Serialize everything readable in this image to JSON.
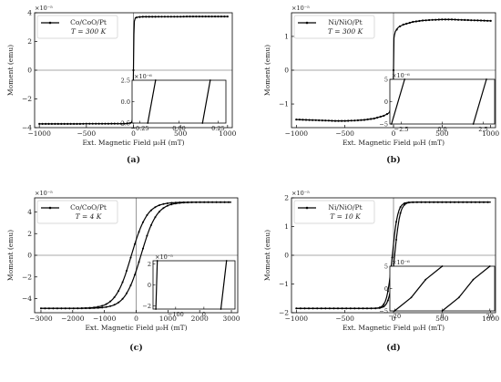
{
  "chart_data": [
    {
      "type": "line",
      "panel_label": "(a)",
      "ylabel": "Moment (emu)",
      "xlabel": "Ext. Magnetic Field μ₀H (mT)",
      "exponent": "×10⁻⁵",
      "xlim": [
        -1050,
        1050
      ],
      "ylim": [
        -4,
        4
      ],
      "xticks": [
        -1000,
        -500,
        0,
        500,
        1000
      ],
      "yticks": [
        -4,
        -2,
        0,
        2,
        4
      ],
      "legend": {
        "line1": "Co/CoO/Pt",
        "line2": "T = 300 K"
      },
      "grid": false,
      "series": [
        {
          "name": "Co/CoO/Pt T = 300 K",
          "x": [
            -1000,
            -900,
            -800,
            -700,
            -600,
            -500,
            -400,
            -300,
            -200,
            -100,
            -50,
            -20,
            -10,
            -5,
            0,
            5,
            10,
            20,
            50,
            100,
            200,
            300,
            400,
            500,
            600,
            700,
            800,
            900,
            1000
          ],
          "y": [
            -3.74,
            -3.74,
            -3.74,
            -3.74,
            -3.74,
            -3.73,
            -3.73,
            -3.73,
            -3.72,
            -3.72,
            -3.7,
            -3.65,
            -3.4,
            -2.5,
            0,
            2.5,
            3.4,
            3.65,
            3.7,
            3.72,
            3.72,
            3.73,
            3.73,
            3.73,
            3.74,
            3.74,
            3.74,
            3.74,
            3.74
          ]
        }
      ],
      "inset": {
        "exponent": "×10⁻⁶",
        "xlim": [
          -0.3,
          0.3
        ],
        "ylim": [
          -2.5,
          2.5
        ],
        "xticks": [
          -0.25,
          0.0,
          0.25
        ],
        "xticklabels": [
          "−0.25",
          "0.00",
          "0.25"
        ],
        "yticks": [
          -2.5,
          0.0,
          2.5
        ],
        "yticklabels": [
          "−2.5",
          "0.0",
          "2.5"
        ],
        "branches": [
          {
            "x": [
              -0.2,
              -0.15
            ],
            "y": [
              -2.5,
              2.5
            ]
          },
          {
            "x": [
              0.15,
              0.2
            ],
            "y": [
              -2.5,
              2.5
            ]
          }
        ]
      }
    },
    {
      "type": "line",
      "panel_label": "(b)",
      "ylabel": "Moment (emu)",
      "xlabel": "Ext. Magnetic Field μ₀H (mT)",
      "exponent": "×10⁻⁵",
      "xlim": [
        -1050,
        1050
      ],
      "ylim": [
        -1.7,
        1.7
      ],
      "xticks": [
        -1000,
        -500,
        0,
        500,
        1000
      ],
      "yticks": [
        -1,
        0,
        1
      ],
      "legend": {
        "line1": "Ni/NiO/Pt",
        "line2": "T = 300 K"
      },
      "grid": false,
      "series": [
        {
          "name": "Ni/NiO/Pt T = 300 K",
          "x": [
            -1000,
            -900,
            -800,
            -700,
            -600,
            -500,
            -400,
            -300,
            -200,
            -100,
            -50,
            -20,
            -10,
            -5,
            0,
            5,
            10,
            20,
            50,
            100,
            200,
            300,
            400,
            500,
            600,
            700,
            800,
            900,
            1000
          ],
          "y": [
            -1.46,
            -1.47,
            -1.48,
            -1.49,
            -1.5,
            -1.5,
            -1.49,
            -1.47,
            -1.43,
            -1.35,
            -1.27,
            -1.15,
            -1.05,
            -0.95,
            0,
            0.95,
            1.05,
            1.15,
            1.27,
            1.35,
            1.43,
            1.47,
            1.49,
            1.5,
            1.5,
            1.49,
            1.48,
            1.47,
            1.46
          ]
        }
      ],
      "inset": {
        "exponent": "×10⁻⁶",
        "xlim": [
          -3.2,
          3.2
        ],
        "ylim": [
          -5,
          5
        ],
        "xticks": [
          -2.5,
          0.0,
          2.5
        ],
        "xticklabels": [
          "−2.5",
          "0.0",
          "2.5"
        ],
        "yticks": [
          -5,
          0,
          5
        ],
        "yticklabels": [
          "−5",
          "0",
          "5"
        ],
        "branches": [
          {
            "x": [
              -3.1,
              -2.3
            ],
            "y": [
              -5,
              5
            ]
          },
          {
            "x": [
              1.9,
              2.7
            ],
            "y": [
              -5,
              5
            ]
          }
        ]
      }
    },
    {
      "type": "line",
      "panel_label": "(c)",
      "ylabel": "Moment (emu)",
      "xlabel": "Ext. Magnetic Field μ₀H (mT)",
      "exponent": "×10⁻⁵",
      "xlim": [
        -3200,
        3200
      ],
      "ylim": [
        -5.3,
        5.3
      ],
      "xticks": [
        -3000,
        -2000,
        -1000,
        0,
        1000,
        2000,
        3000
      ],
      "yticks": [
        -4,
        -2,
        0,
        2,
        4
      ],
      "legend": {
        "line1": "Co/CoO/Pt",
        "line2": "T = 4 K"
      },
      "grid": false,
      "hysteresis": {
        "hc_up": 150,
        "hc_down": -150,
        "ms": 4.9,
        "width": 500
      },
      "inset": {
        "exponent": "×10⁻⁵",
        "xlim": [
          -180,
          110
        ],
        "ylim": [
          -2.3,
          2.3
        ],
        "xticks": [
          -100,
          0
        ],
        "xticklabels": [
          "−100",
          "0"
        ],
        "yticks": [
          -2,
          0,
          2
        ],
        "yticklabels": [
          "−2",
          "0",
          "2"
        ],
        "branches": [
          {
            "x": [
              -170,
              -165
            ],
            "y": [
              -2.3,
              2.3
            ]
          },
          {
            "x": [
              60,
              80
            ],
            "y": [
              -2.3,
              2.3
            ]
          }
        ]
      }
    },
    {
      "type": "line",
      "panel_label": "(d)",
      "ylabel": "Moment (emu)",
      "xlabel": "Ext. Magnetic Field μ₀H (mT)",
      "exponent": "×10⁻⁵",
      "xlim": [
        -1050,
        1050
      ],
      "ylim": [
        -2,
        2
      ],
      "xticks": [
        -1000,
        -500,
        0,
        500,
        1000
      ],
      "yticks": [
        -2,
        -1,
        0,
        1,
        2
      ],
      "legend": {
        "line1": "Ni/NiO/Pt",
        "line2": "T = 10 K"
      },
      "grid": false,
      "hysteresis": {
        "hc_up": 12,
        "hc_down": -12,
        "ms": 1.85,
        "width": 55
      },
      "inset": {
        "exponent": "×10⁻⁶",
        "xlim": [
          -22,
          22
        ],
        "ylim": [
          -5,
          5
        ],
        "xticks": [
          -20,
          0,
          20
        ],
        "xticklabels": [
          "−20",
          "0",
          "20"
        ],
        "yticks": [
          -5,
          0,
          5
        ],
        "yticklabels": [
          "−5",
          "0",
          "5"
        ],
        "branches": [
          {
            "x": [
              -20,
              -13,
              -7,
              0
            ],
            "y": [
              -5,
              -2,
              2,
              5
            ]
          },
          {
            "x": [
              0,
              7,
              13,
              20
            ],
            "y": [
              -5,
              -2,
              2,
              5
            ]
          }
        ]
      }
    }
  ]
}
